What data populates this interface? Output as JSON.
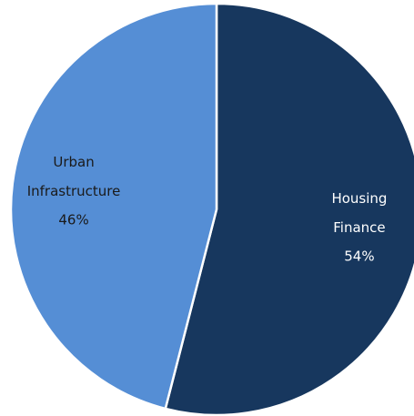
{
  "chart_data": {
    "type": "pie",
    "categories": [
      "Housing Finance",
      "Urban Infrastructure"
    ],
    "values": [
      54,
      46
    ],
    "value_labels": [
      "54%",
      "46%"
    ],
    "colors": [
      "#17375e",
      "#558ed5"
    ],
    "label_colors": [
      "#ffffff",
      "#1a1a1a"
    ]
  }
}
